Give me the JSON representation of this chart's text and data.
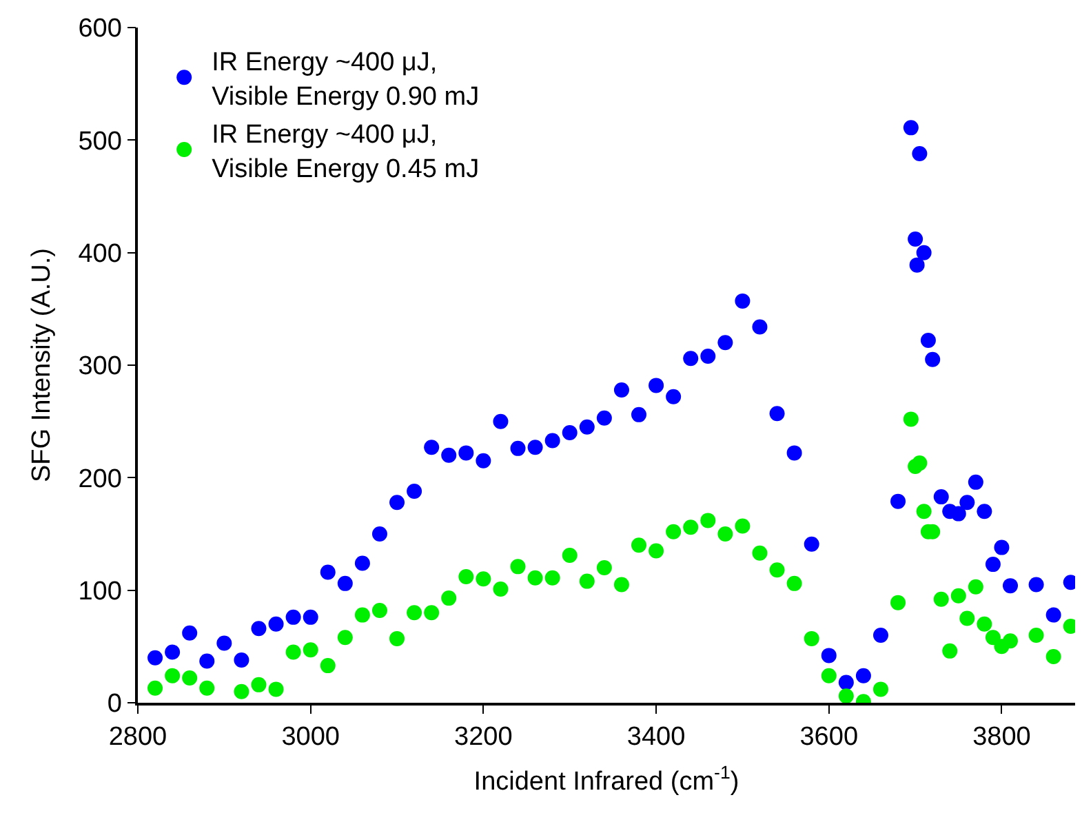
{
  "chart_data": {
    "type": "scatter",
    "xlabel": "Incident Infrared (cm$^{-1}$)",
    "ylabel": "SFG Intensity (A.U.)",
    "xlim": [
      2800,
      3885
    ],
    "xticks": [
      2800,
      3000,
      3200,
      3400,
      3600,
      3800
    ],
    "ylim": [
      0,
      600
    ],
    "yticks": [
      0,
      100,
      200,
      300,
      400,
      500,
      600
    ],
    "legend": "top left",
    "marker": "circle",
    "series": [
      {
        "name": "IR Energy ~400 μJ,\nVisible Energy 0.90 mJ",
        "color": "#0000ff",
        "x": [
          2820,
          2840,
          2860,
          2880,
          2900,
          2920,
          2940,
          2960,
          2980,
          3000,
          3020,
          3040,
          3060,
          3080,
          3100,
          3120,
          3140,
          3160,
          3180,
          3200,
          3220,
          3240,
          3260,
          3280,
          3300,
          3320,
          3340,
          3360,
          3380,
          3400,
          3420,
          3440,
          3460,
          3480,
          3500,
          3520,
          3540,
          3560,
          3580,
          3600,
          3620,
          3640,
          3660,
          3680,
          3695,
          3700,
          3702,
          3705,
          3710,
          3715,
          3720,
          3730,
          3740,
          3750,
          3760,
          3770,
          3780,
          3790,
          3800,
          3810,
          3840,
          3860,
          3880
        ],
        "values": [
          40,
          45,
          62,
          37,
          53,
          38,
          66,
          70,
          76,
          76,
          116,
          106,
          124,
          150,
          178,
          188,
          227,
          220,
          222,
          215,
          250,
          226,
          227,
          233,
          240,
          245,
          253,
          278,
          256,
          282,
          272,
          306,
          308,
          320,
          357,
          334,
          257,
          222,
          141,
          42,
          18,
          24,
          60,
          179,
          511,
          412,
          389,
          488,
          400,
          322,
          305,
          183,
          170,
          168,
          178,
          196,
          170,
          123,
          138,
          104,
          105,
          78,
          107
        ]
      },
      {
        "name": "IR Energy ~400 μJ,\nVisible Energy 0.45 mJ",
        "color": "#00ee00",
        "x": [
          2820,
          2840,
          2860,
          2880,
          2920,
          2940,
          2960,
          2980,
          3000,
          3020,
          3040,
          3060,
          3080,
          3100,
          3120,
          3140,
          3160,
          3180,
          3200,
          3220,
          3240,
          3260,
          3280,
          3300,
          3320,
          3340,
          3360,
          3380,
          3400,
          3420,
          3440,
          3460,
          3480,
          3500,
          3520,
          3540,
          3560,
          3580,
          3600,
          3620,
          3640,
          3660,
          3680,
          3695,
          3700,
          3705,
          3710,
          3715,
          3720,
          3730,
          3740,
          3750,
          3760,
          3770,
          3780,
          3790,
          3800,
          3810,
          3840,
          3860,
          3880
        ],
        "values": [
          13,
          24,
          22,
          13,
          10,
          16,
          12,
          45,
          47,
          33,
          58,
          78,
          82,
          57,
          80,
          80,
          93,
          112,
          110,
          101,
          121,
          111,
          111,
          131,
          108,
          120,
          105,
          140,
          135,
          152,
          156,
          162,
          150,
          157,
          133,
          118,
          106,
          57,
          24,
          6,
          1,
          12,
          89,
          252,
          210,
          213,
          170,
          152,
          152,
          92,
          46,
          95,
          75,
          103,
          70,
          58,
          50,
          55,
          60,
          41,
          68
        ]
      }
    ]
  }
}
